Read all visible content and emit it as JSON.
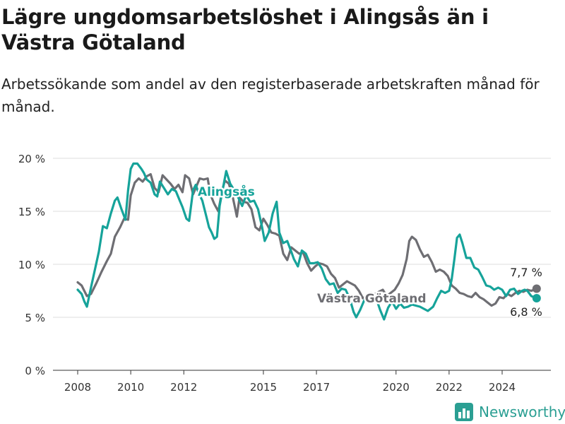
{
  "header": {
    "title": "Lägre ungdomsarbetslöshet i Alingsås än i Västra Götaland",
    "subtitle": "Arbetssökande som andel av den registerbaserade arbetskraften månad för månad."
  },
  "brand": {
    "name": "Newsworthy",
    "color": "#2b9f93"
  },
  "chart_data": {
    "type": "line",
    "title": "Lägre ungdomsarbetslöshet i Alingsås än i Västra Götaland",
    "subtitle": "Arbetssökande som andel av den registerbaserade arbetskraften månad för månad.",
    "xlabel": "",
    "ylabel": "",
    "xlim": [
      2007.5,
      2026.2
    ],
    "ylim": [
      0,
      20
    ],
    "x_ticks": [
      2008,
      2010,
      2012,
      2015,
      2017,
      2020,
      2022,
      2024
    ],
    "x_tick_labels": [
      "2008",
      "2010",
      "2012",
      "2015",
      "2017",
      "2020",
      "2022",
      "2024"
    ],
    "y_ticks": [
      0,
      5,
      10,
      15,
      20
    ],
    "y_tick_labels": [
      "0 %",
      "5 %",
      "10 %",
      "15 %",
      "20 %"
    ],
    "grid": "horizontal",
    "legend": "direct labels",
    "series": [
      {
        "name": "Västra Götaland",
        "color": "#6e6e73",
        "end_label": "7,7 %",
        "points": [
          [
            2008.0,
            8.3
          ],
          [
            2008.15,
            8.0
          ],
          [
            2008.35,
            7.0
          ],
          [
            2008.5,
            7.2
          ],
          [
            2008.7,
            8.2
          ],
          [
            2008.9,
            9.3
          ],
          [
            2009.1,
            10.3
          ],
          [
            2009.25,
            11.0
          ],
          [
            2009.4,
            12.6
          ],
          [
            2009.6,
            13.5
          ],
          [
            2009.75,
            14.3
          ],
          [
            2009.9,
            14.2
          ],
          [
            2010.0,
            16.5
          ],
          [
            2010.15,
            17.7
          ],
          [
            2010.3,
            18.1
          ],
          [
            2010.45,
            17.8
          ],
          [
            2010.6,
            18.3
          ],
          [
            2010.75,
            18.5
          ],
          [
            2010.9,
            17.2
          ],
          [
            2011.05,
            16.8
          ],
          [
            2011.2,
            18.4
          ],
          [
            2011.35,
            18.0
          ],
          [
            2011.5,
            17.6
          ],
          [
            2011.65,
            17.1
          ],
          [
            2011.8,
            17.5
          ],
          [
            2011.95,
            16.8
          ],
          [
            2012.05,
            18.4
          ],
          [
            2012.2,
            18.1
          ],
          [
            2012.35,
            16.6
          ],
          [
            2012.5,
            17.5
          ],
          [
            2012.6,
            18.1
          ],
          [
            2012.75,
            18.0
          ],
          [
            2012.9,
            18.1
          ],
          [
            2013.0,
            16.6
          ],
          [
            2013.15,
            15.7
          ],
          [
            2013.3,
            15.0
          ],
          [
            2013.45,
            17.0
          ],
          [
            2013.55,
            17.9
          ],
          [
            2013.7,
            17.6
          ],
          [
            2013.85,
            16.3
          ],
          [
            2014.0,
            14.5
          ],
          [
            2014.1,
            16.3
          ],
          [
            2014.25,
            15.9
          ],
          [
            2014.4,
            15.8
          ],
          [
            2014.55,
            15.2
          ],
          [
            2014.7,
            13.5
          ],
          [
            2014.85,
            13.2
          ],
          [
            2015.0,
            14.3
          ],
          [
            2015.15,
            13.7
          ],
          [
            2015.3,
            13.0
          ],
          [
            2015.45,
            12.9
          ],
          [
            2015.6,
            12.7
          ],
          [
            2015.75,
            11.0
          ],
          [
            2015.9,
            10.4
          ],
          [
            2016.05,
            11.6
          ],
          [
            2016.2,
            11.3
          ],
          [
            2016.35,
            11.0
          ],
          [
            2016.5,
            11.1
          ],
          [
            2016.65,
            10.1
          ],
          [
            2016.8,
            9.4
          ],
          [
            2016.95,
            9.8
          ],
          [
            2017.1,
            10.1
          ],
          [
            2017.25,
            10.0
          ],
          [
            2017.4,
            9.8
          ],
          [
            2017.55,
            9.1
          ],
          [
            2017.7,
            8.7
          ],
          [
            2017.85,
            7.8
          ],
          [
            2018.0,
            8.1
          ],
          [
            2018.15,
            8.4
          ],
          [
            2018.3,
            8.2
          ],
          [
            2018.45,
            8.0
          ],
          [
            2018.6,
            7.5
          ],
          [
            2018.75,
            6.8
          ],
          [
            2018.9,
            7.0
          ],
          [
            2019.05,
            7.3
          ],
          [
            2019.2,
            7.2
          ],
          [
            2019.35,
            7.4
          ],
          [
            2019.5,
            7.6
          ],
          [
            2019.65,
            7.0
          ],
          [
            2019.8,
            7.3
          ],
          [
            2019.95,
            7.6
          ],
          [
            2020.1,
            8.2
          ],
          [
            2020.25,
            9.0
          ],
          [
            2020.4,
            10.5
          ],
          [
            2020.5,
            12.2
          ],
          [
            2020.6,
            12.6
          ],
          [
            2020.75,
            12.3
          ],
          [
            2020.9,
            11.4
          ],
          [
            2021.05,
            10.7
          ],
          [
            2021.2,
            10.9
          ],
          [
            2021.35,
            10.2
          ],
          [
            2021.5,
            9.3
          ],
          [
            2021.65,
            9.5
          ],
          [
            2021.8,
            9.3
          ],
          [
            2021.95,
            8.9
          ],
          [
            2022.1,
            8.0
          ],
          [
            2022.25,
            7.7
          ],
          [
            2022.4,
            7.3
          ],
          [
            2022.55,
            7.2
          ],
          [
            2022.7,
            7.0
          ],
          [
            2022.85,
            6.9
          ],
          [
            2023.0,
            7.3
          ],
          [
            2023.15,
            6.9
          ],
          [
            2023.3,
            6.7
          ],
          [
            2023.45,
            6.4
          ],
          [
            2023.6,
            6.1
          ],
          [
            2023.75,
            6.3
          ],
          [
            2023.9,
            6.9
          ],
          [
            2024.05,
            6.8
          ],
          [
            2024.2,
            7.2
          ],
          [
            2024.35,
            7.0
          ],
          [
            2024.5,
            7.3
          ],
          [
            2024.65,
            7.5
          ],
          [
            2024.8,
            7.4
          ],
          [
            2024.95,
            7.6
          ],
          [
            2025.1,
            7.5
          ],
          [
            2025.3,
            7.7
          ]
        ]
      },
      {
        "name": "Alingsås",
        "color": "#16a39a",
        "end_label": "6,8 %",
        "points": [
          [
            2008.0,
            7.6
          ],
          [
            2008.15,
            7.2
          ],
          [
            2008.25,
            6.5
          ],
          [
            2008.35,
            6.0
          ],
          [
            2008.5,
            7.8
          ],
          [
            2008.65,
            9.5
          ],
          [
            2008.8,
            11.2
          ],
          [
            2008.95,
            13.6
          ],
          [
            2009.1,
            13.4
          ],
          [
            2009.25,
            14.8
          ],
          [
            2009.4,
            16.0
          ],
          [
            2009.5,
            16.3
          ],
          [
            2009.65,
            15.2
          ],
          [
            2009.8,
            14.2
          ],
          [
            2009.9,
            17.0
          ],
          [
            2010.0,
            19.0
          ],
          [
            2010.1,
            19.5
          ],
          [
            2010.25,
            19.5
          ],
          [
            2010.4,
            19.0
          ],
          [
            2010.5,
            18.6
          ],
          [
            2010.6,
            18.0
          ],
          [
            2010.75,
            17.7
          ],
          [
            2010.9,
            16.6
          ],
          [
            2011.0,
            16.4
          ],
          [
            2011.1,
            17.8
          ],
          [
            2011.25,
            17.2
          ],
          [
            2011.4,
            16.6
          ],
          [
            2011.55,
            17.1
          ],
          [
            2011.7,
            16.9
          ],
          [
            2011.85,
            16.0
          ],
          [
            2011.95,
            15.4
          ],
          [
            2012.1,
            14.3
          ],
          [
            2012.2,
            14.1
          ],
          [
            2012.35,
            17.0
          ],
          [
            2012.45,
            17.5
          ],
          [
            2012.55,
            16.8
          ],
          [
            2012.7,
            16.0
          ],
          [
            2012.85,
            14.5
          ],
          [
            2012.95,
            13.5
          ],
          [
            2013.05,
            13.0
          ],
          [
            2013.15,
            12.4
          ],
          [
            2013.25,
            12.6
          ],
          [
            2013.35,
            15.5
          ],
          [
            2013.5,
            17.5
          ],
          [
            2013.6,
            18.8
          ],
          [
            2013.75,
            17.6
          ],
          [
            2013.9,
            17.0
          ],
          [
            2014.05,
            16.3
          ],
          [
            2014.2,
            15.5
          ],
          [
            2014.35,
            16.5
          ],
          [
            2014.5,
            15.9
          ],
          [
            2014.65,
            16.0
          ],
          [
            2014.8,
            15.2
          ],
          [
            2014.95,
            13.5
          ],
          [
            2015.05,
            12.2
          ],
          [
            2015.2,
            13.0
          ],
          [
            2015.35,
            14.8
          ],
          [
            2015.5,
            15.9
          ],
          [
            2015.6,
            13.0
          ],
          [
            2015.75,
            12.0
          ],
          [
            2015.9,
            12.2
          ],
          [
            2016.05,
            11.2
          ],
          [
            2016.15,
            10.5
          ],
          [
            2016.3,
            9.8
          ],
          [
            2016.45,
            11.3
          ],
          [
            2016.6,
            11.0
          ],
          [
            2016.75,
            10.1
          ],
          [
            2016.9,
            10.1
          ],
          [
            2017.05,
            10.2
          ],
          [
            2017.2,
            9.6
          ],
          [
            2017.35,
            8.6
          ],
          [
            2017.5,
            8.1
          ],
          [
            2017.65,
            8.2
          ],
          [
            2017.8,
            7.3
          ],
          [
            2017.95,
            7.7
          ],
          [
            2018.1,
            7.6
          ],
          [
            2018.25,
            6.8
          ],
          [
            2018.4,
            5.5
          ],
          [
            2018.5,
            5.0
          ],
          [
            2018.65,
            5.7
          ],
          [
            2018.8,
            6.6
          ],
          [
            2018.95,
            7.0
          ],
          [
            2019.1,
            6.5
          ],
          [
            2019.25,
            6.8
          ],
          [
            2019.4,
            5.7
          ],
          [
            2019.55,
            4.8
          ],
          [
            2019.7,
            5.9
          ],
          [
            2019.85,
            6.5
          ],
          [
            2020.0,
            5.8
          ],
          [
            2020.15,
            6.3
          ],
          [
            2020.3,
            5.9
          ],
          [
            2020.45,
            6.0
          ],
          [
            2020.6,
            6.2
          ],
          [
            2020.75,
            6.1
          ],
          [
            2020.9,
            6.0
          ],
          [
            2021.05,
            5.8
          ],
          [
            2021.2,
            5.6
          ],
          [
            2021.4,
            6.0
          ],
          [
            2021.55,
            6.8
          ],
          [
            2021.7,
            7.5
          ],
          [
            2021.85,
            7.3
          ],
          [
            2022.0,
            7.5
          ],
          [
            2022.1,
            8.6
          ],
          [
            2022.2,
            10.5
          ],
          [
            2022.3,
            12.5
          ],
          [
            2022.4,
            12.8
          ],
          [
            2022.5,
            12.0
          ],
          [
            2022.65,
            10.6
          ],
          [
            2022.8,
            10.6
          ],
          [
            2022.95,
            9.7
          ],
          [
            2023.1,
            9.5
          ],
          [
            2023.25,
            8.8
          ],
          [
            2023.4,
            8.0
          ],
          [
            2023.55,
            7.9
          ],
          [
            2023.7,
            7.6
          ],
          [
            2023.85,
            7.8
          ],
          [
            2024.0,
            7.6
          ],
          [
            2024.15,
            7.0
          ],
          [
            2024.3,
            7.6
          ],
          [
            2024.45,
            7.7
          ],
          [
            2024.6,
            7.2
          ],
          [
            2024.75,
            7.5
          ],
          [
            2024.85,
            7.6
          ],
          [
            2024.95,
            7.5
          ],
          [
            2025.1,
            7.0
          ],
          [
            2025.3,
            6.8
          ]
        ]
      }
    ]
  }
}
